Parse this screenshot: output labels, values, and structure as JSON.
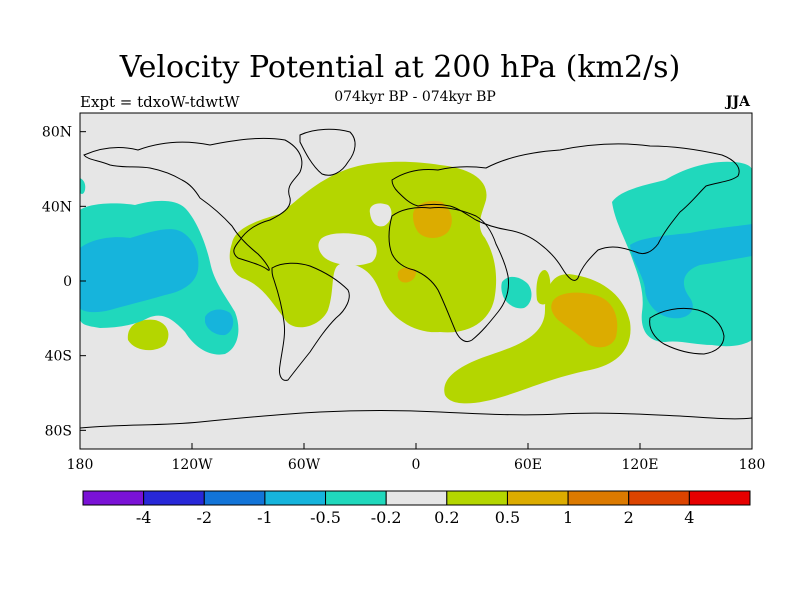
{
  "header": {
    "title": "Velocity Potential at 200 hPa (km2/s)",
    "subtitle": "074kyr BP - 074kyr BP",
    "left_label": "Expt = tdxoW-tdwtW",
    "right_label": "JJA"
  },
  "map": {
    "projection": "cylindrical equidistant",
    "lon_range": [
      -180,
      180
    ],
    "lat_range": [
      -90,
      90
    ],
    "lon_ticks": [
      {
        "value": -180,
        "label": "180"
      },
      {
        "value": -120,
        "label": "120W"
      },
      {
        "value": -60,
        "label": "60W"
      },
      {
        "value": 0,
        "label": "0"
      },
      {
        "value": 60,
        "label": "60E"
      },
      {
        "value": 120,
        "label": "120E"
      },
      {
        "value": 180,
        "label": "180"
      }
    ],
    "lat_ticks": [
      {
        "value": 80,
        "label": "80N"
      },
      {
        "value": 40,
        "label": "40N"
      },
      {
        "value": 0,
        "label": "0"
      },
      {
        "value": -40,
        "label": "40S"
      },
      {
        "value": -80,
        "label": "80S"
      }
    ],
    "background_color": "#e6e6e6"
  },
  "colorbar": {
    "colors": [
      "#7a12d6",
      "#2828d8",
      "#1274d8",
      "#16b4dc",
      "#20d8bc",
      "#e6e6e6",
      "#b4d600",
      "#dcac00",
      "#dc7a00",
      "#dc4400",
      "#e60000"
    ],
    "labels": [
      "-4",
      "-2",
      "-1",
      "-0.5",
      "-0.2",
      "0.2",
      "0.5",
      "1",
      "2",
      "4"
    ]
  }
}
